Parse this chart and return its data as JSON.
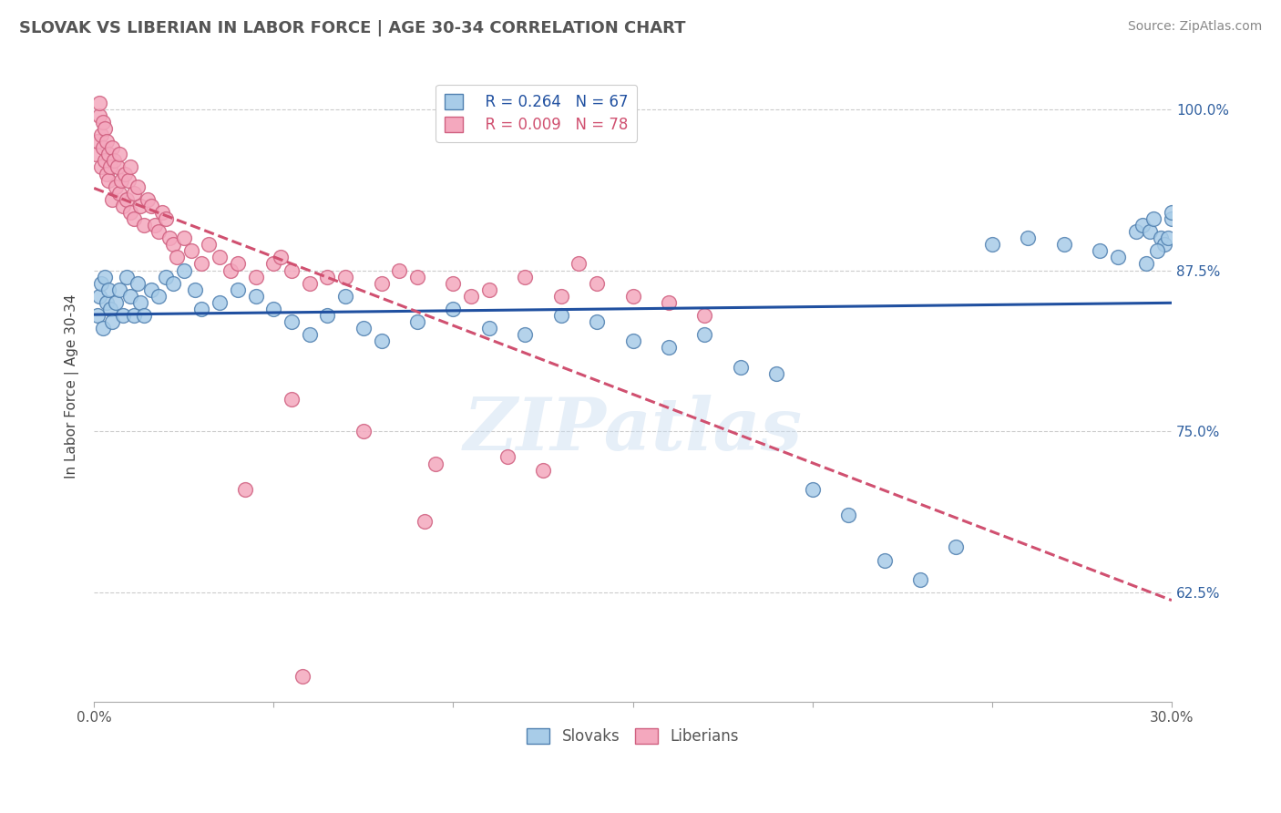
{
  "title": "SLOVAK VS LIBERIAN IN LABOR FORCE | AGE 30-34 CORRELATION CHART",
  "source_text": "Source: ZipAtlas.com",
  "ylabel": "In Labor Force | Age 30-34",
  "xlim": [
    0.0,
    30.0
  ],
  "ylim": [
    54.0,
    103.0
  ],
  "yticks": [
    62.5,
    75.0,
    87.5,
    100.0
  ],
  "ytick_labels": [
    "62.5%",
    "75.0%",
    "87.5%",
    "100.0%"
  ],
  "xticks": [
    0.0,
    5.0,
    10.0,
    15.0,
    20.0,
    25.0,
    30.0
  ],
  "legend_slovak_r": "R = 0.264",
  "legend_slovak_n": "N = 67",
  "legend_liberian_r": "R = 0.009",
  "legend_liberian_n": "N = 78",
  "slovak_color": "#A8CCE8",
  "liberian_color": "#F4A8BE",
  "slovak_edge_color": "#5080B0",
  "liberian_edge_color": "#D06080",
  "slovak_line_color": "#2050A0",
  "liberian_line_color": "#D05070",
  "background_color": "#FFFFFF",
  "watermark_text": "ZIPatlas",
  "slovak_x": [
    0.1,
    0.15,
    0.2,
    0.25,
    0.3,
    0.35,
    0.4,
    0.45,
    0.5,
    0.6,
    0.7,
    0.8,
    0.9,
    1.0,
    1.1,
    1.2,
    1.3,
    1.4,
    1.6,
    1.8,
    2.0,
    2.2,
    2.5,
    2.8,
    3.0,
    3.5,
    4.0,
    4.5,
    5.0,
    5.5,
    6.0,
    6.5,
    7.0,
    7.5,
    8.0,
    9.0,
    10.0,
    11.0,
    12.0,
    13.0,
    14.0,
    15.0,
    16.0,
    17.0,
    18.0,
    19.0,
    20.0,
    21.0,
    22.0,
    23.0,
    24.0,
    25.0,
    26.0,
    27.0,
    28.0,
    28.5,
    29.0,
    29.2,
    29.4,
    29.5,
    29.7,
    29.8,
    29.9,
    30.0,
    29.3,
    29.6,
    30.0
  ],
  "slovak_y": [
    84.0,
    85.5,
    86.5,
    83.0,
    87.0,
    85.0,
    86.0,
    84.5,
    83.5,
    85.0,
    86.0,
    84.0,
    87.0,
    85.5,
    84.0,
    86.5,
    85.0,
    84.0,
    86.0,
    85.5,
    87.0,
    86.5,
    87.5,
    86.0,
    84.5,
    85.0,
    86.0,
    85.5,
    84.5,
    83.5,
    82.5,
    84.0,
    85.5,
    83.0,
    82.0,
    83.5,
    84.5,
    83.0,
    82.5,
    84.0,
    83.5,
    82.0,
    81.5,
    82.5,
    80.0,
    79.5,
    70.5,
    68.5,
    65.0,
    63.5,
    66.0,
    89.5,
    90.0,
    89.5,
    89.0,
    88.5,
    90.5,
    91.0,
    90.5,
    91.5,
    90.0,
    89.5,
    90.0,
    91.5,
    88.0,
    89.0,
    92.0
  ],
  "liberian_x": [
    0.05,
    0.1,
    0.15,
    0.15,
    0.2,
    0.2,
    0.25,
    0.25,
    0.3,
    0.3,
    0.35,
    0.35,
    0.4,
    0.4,
    0.45,
    0.5,
    0.5,
    0.55,
    0.6,
    0.65,
    0.7,
    0.7,
    0.75,
    0.8,
    0.85,
    0.9,
    0.95,
    1.0,
    1.0,
    1.1,
    1.1,
    1.2,
    1.3,
    1.4,
    1.5,
    1.6,
    1.7,
    1.8,
    1.9,
    2.0,
    2.1,
    2.2,
    2.3,
    2.5,
    2.7,
    3.0,
    3.2,
    3.5,
    3.8,
    4.0,
    4.5,
    5.0,
    5.5,
    6.0,
    7.0,
    8.0,
    9.0,
    10.0,
    11.0,
    12.0,
    13.0,
    14.0,
    15.0,
    16.0,
    17.0,
    4.2,
    5.5,
    9.5,
    10.5,
    11.5,
    12.5,
    5.2,
    6.5,
    8.5,
    13.5,
    5.8,
    7.5,
    9.2
  ],
  "liberian_y": [
    96.5,
    97.5,
    99.5,
    100.5,
    95.5,
    98.0,
    97.0,
    99.0,
    96.0,
    98.5,
    95.0,
    97.5,
    94.5,
    96.5,
    95.5,
    97.0,
    93.0,
    96.0,
    94.0,
    95.5,
    93.5,
    96.5,
    94.5,
    92.5,
    95.0,
    93.0,
    94.5,
    92.0,
    95.5,
    93.5,
    91.5,
    94.0,
    92.5,
    91.0,
    93.0,
    92.5,
    91.0,
    90.5,
    92.0,
    91.5,
    90.0,
    89.5,
    88.5,
    90.0,
    89.0,
    88.0,
    89.5,
    88.5,
    87.5,
    88.0,
    87.0,
    88.0,
    87.5,
    86.5,
    87.0,
    86.5,
    87.0,
    86.5,
    86.0,
    87.0,
    85.5,
    86.5,
    85.5,
    85.0,
    84.0,
    70.5,
    77.5,
    72.5,
    85.5,
    73.0,
    72.0,
    88.5,
    87.0,
    87.5,
    88.0,
    56.0,
    75.0,
    68.0
  ]
}
